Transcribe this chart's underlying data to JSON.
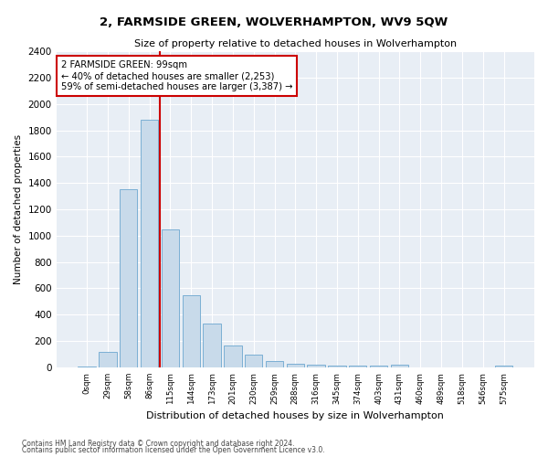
{
  "title": "2, FARMSIDE GREEN, WOLVERHAMPTON, WV9 5QW",
  "subtitle": "Size of property relative to detached houses in Wolverhampton",
  "xlabel": "Distribution of detached houses by size in Wolverhampton",
  "ylabel": "Number of detached properties",
  "bar_color": "#c8daea",
  "bar_edge_color": "#7bafd4",
  "background_color": "#ffffff",
  "plot_background_color": "#e8eef5",
  "grid_color": "#ffffff",
  "annotation_box_color": "#cc0000",
  "vline_color": "#cc0000",
  "categories": [
    "0sqm",
    "29sqm",
    "58sqm",
    "86sqm",
    "115sqm",
    "144sqm",
    "173sqm",
    "201sqm",
    "230sqm",
    "259sqm",
    "288sqm",
    "316sqm",
    "345sqm",
    "374sqm",
    "403sqm",
    "431sqm",
    "460sqm",
    "489sqm",
    "518sqm",
    "546sqm",
    "575sqm"
  ],
  "values": [
    5,
    120,
    1350,
    1880,
    1050,
    550,
    330,
    165,
    100,
    50,
    30,
    20,
    15,
    12,
    10,
    20,
    2,
    0,
    0,
    0,
    10
  ],
  "ylim": [
    0,
    2400
  ],
  "yticks": [
    0,
    200,
    400,
    600,
    800,
    1000,
    1200,
    1400,
    1600,
    1800,
    2000,
    2200,
    2400
  ],
  "annotation_line1": "2 FARMSIDE GREEN: 99sqm",
  "annotation_line2": "← 40% of detached houses are smaller (2,253)",
  "annotation_line3": "59% of semi-detached houses are larger (3,387) →",
  "footer1": "Contains HM Land Registry data © Crown copyright and database right 2024.",
  "footer2": "Contains public sector information licensed under the Open Government Licence v3.0.",
  "vline_x_index": 3
}
